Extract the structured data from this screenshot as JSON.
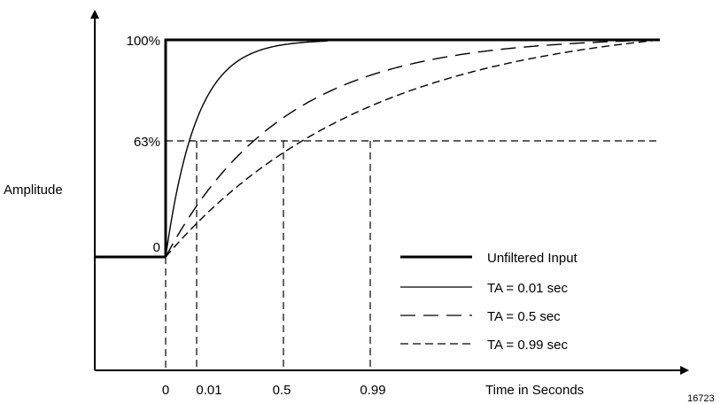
{
  "chart_data": {
    "type": "line",
    "title": "",
    "xlabel": "Time in Seconds",
    "ylabel": "Amplitude",
    "figure_id": "16723",
    "x_ticks": [
      "0",
      "0.01",
      "0.5",
      "0.99"
    ],
    "y_ticks": [
      "0",
      "63%",
      "100%"
    ],
    "reference_level": "63%",
    "series": [
      {
        "name": "Unfiltered Input",
        "style": "thick-solid",
        "description": "step from 0 to 100% at t=0"
      },
      {
        "name": "TA = 0.01 sec",
        "style": "thin-solid",
        "time_to_63pct": "0.01"
      },
      {
        "name": "TA = 0.5 sec",
        "style": "long-dash",
        "time_to_63pct": "0.5"
      },
      {
        "name": "TA = 0.99 sec",
        "style": "short-dash",
        "time_to_63pct": "0.99"
      }
    ],
    "legend": {
      "placement": "bottom-right",
      "entries": [
        "Unfiltered Input",
        "TA = 0.01 sec",
        "TA = 0.5 sec",
        "TA = 0.99 sec"
      ]
    },
    "grid": false
  }
}
